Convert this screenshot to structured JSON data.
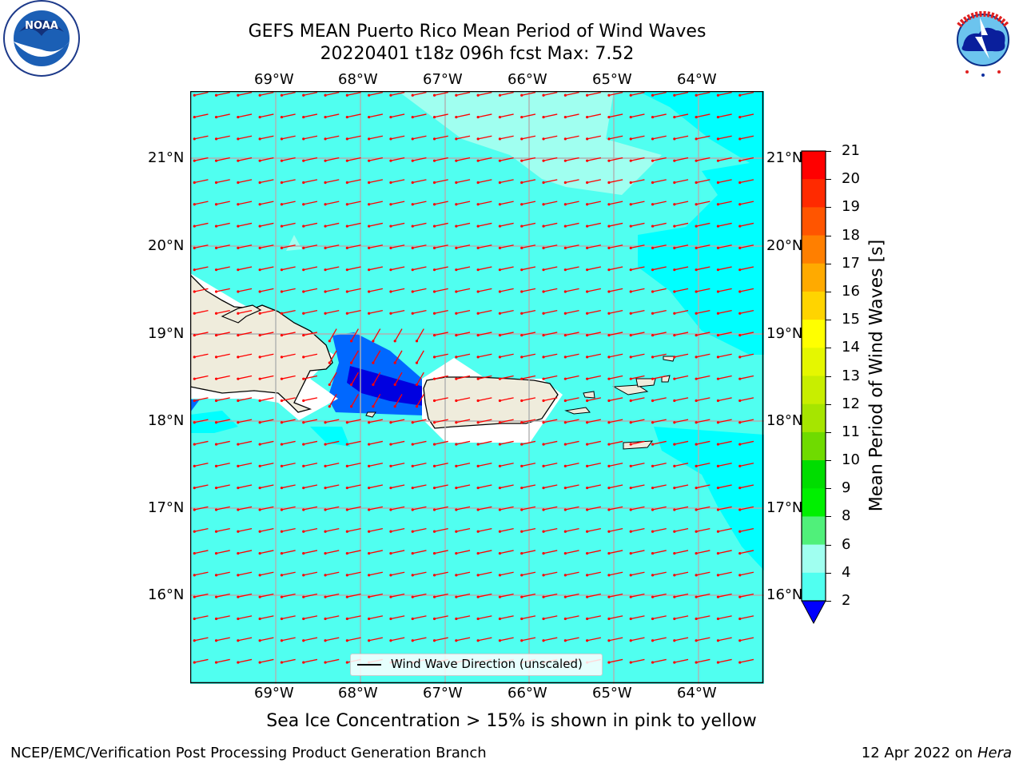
{
  "title_line1": "GEFS MEAN Puerto Rico Mean Period of Wind Waves",
  "title_line2": "20220401 t18z 096h fcst   Max: 7.52",
  "lon_labels": [
    "69°W",
    "68°W",
    "67°W",
    "66°W",
    "65°W",
    "64°W"
  ],
  "lat_labels": [
    "21°N",
    "20°N",
    "19°N",
    "18°N",
    "17°N",
    "16°N"
  ],
  "colorbar": {
    "label": "Mean Period of Wind Waves [s]",
    "ticks": [
      "21",
      "20",
      "19",
      "18",
      "17",
      "16",
      "15",
      "14",
      "13",
      "12",
      "11",
      "10",
      "9",
      "8",
      "6",
      "4",
      "2"
    ],
    "colors": [
      "#ff0000",
      "#ff2a00",
      "#ff5500",
      "#ff7f00",
      "#ffaa00",
      "#ffd400",
      "#ffff00",
      "#e5f700",
      "#c8ee00",
      "#a6e500",
      "#6fdb00",
      "#00dd00",
      "#00f000",
      "#50f07a",
      "#a0fff0",
      "#50fff0",
      "#00ffff",
      "#0068ff",
      "#0000ff"
    ]
  },
  "legend_label": "Wind Wave Direction (unscaled)",
  "ice_note": "Sea Ice Concentration > 15% is shown in pink to yellow",
  "footer_left": "NCEP/EMC/Verification Post Processing Product Generation Branch",
  "footer_right_prefix": "12 Apr 2022 on ",
  "footer_right_host": "Hera",
  "colors": {
    "ocean_main": "#50fff0",
    "ocean_light": "#a0fff0",
    "ocean_dark": "#00ffff",
    "blue": "#0068ff",
    "deep_blue": "#0000e0",
    "land": "#efecdc",
    "arrow": "#ff0000"
  },
  "logos": {
    "noaa": "NOAA",
    "nws": "NATIONAL WEATHER SERVICE"
  }
}
